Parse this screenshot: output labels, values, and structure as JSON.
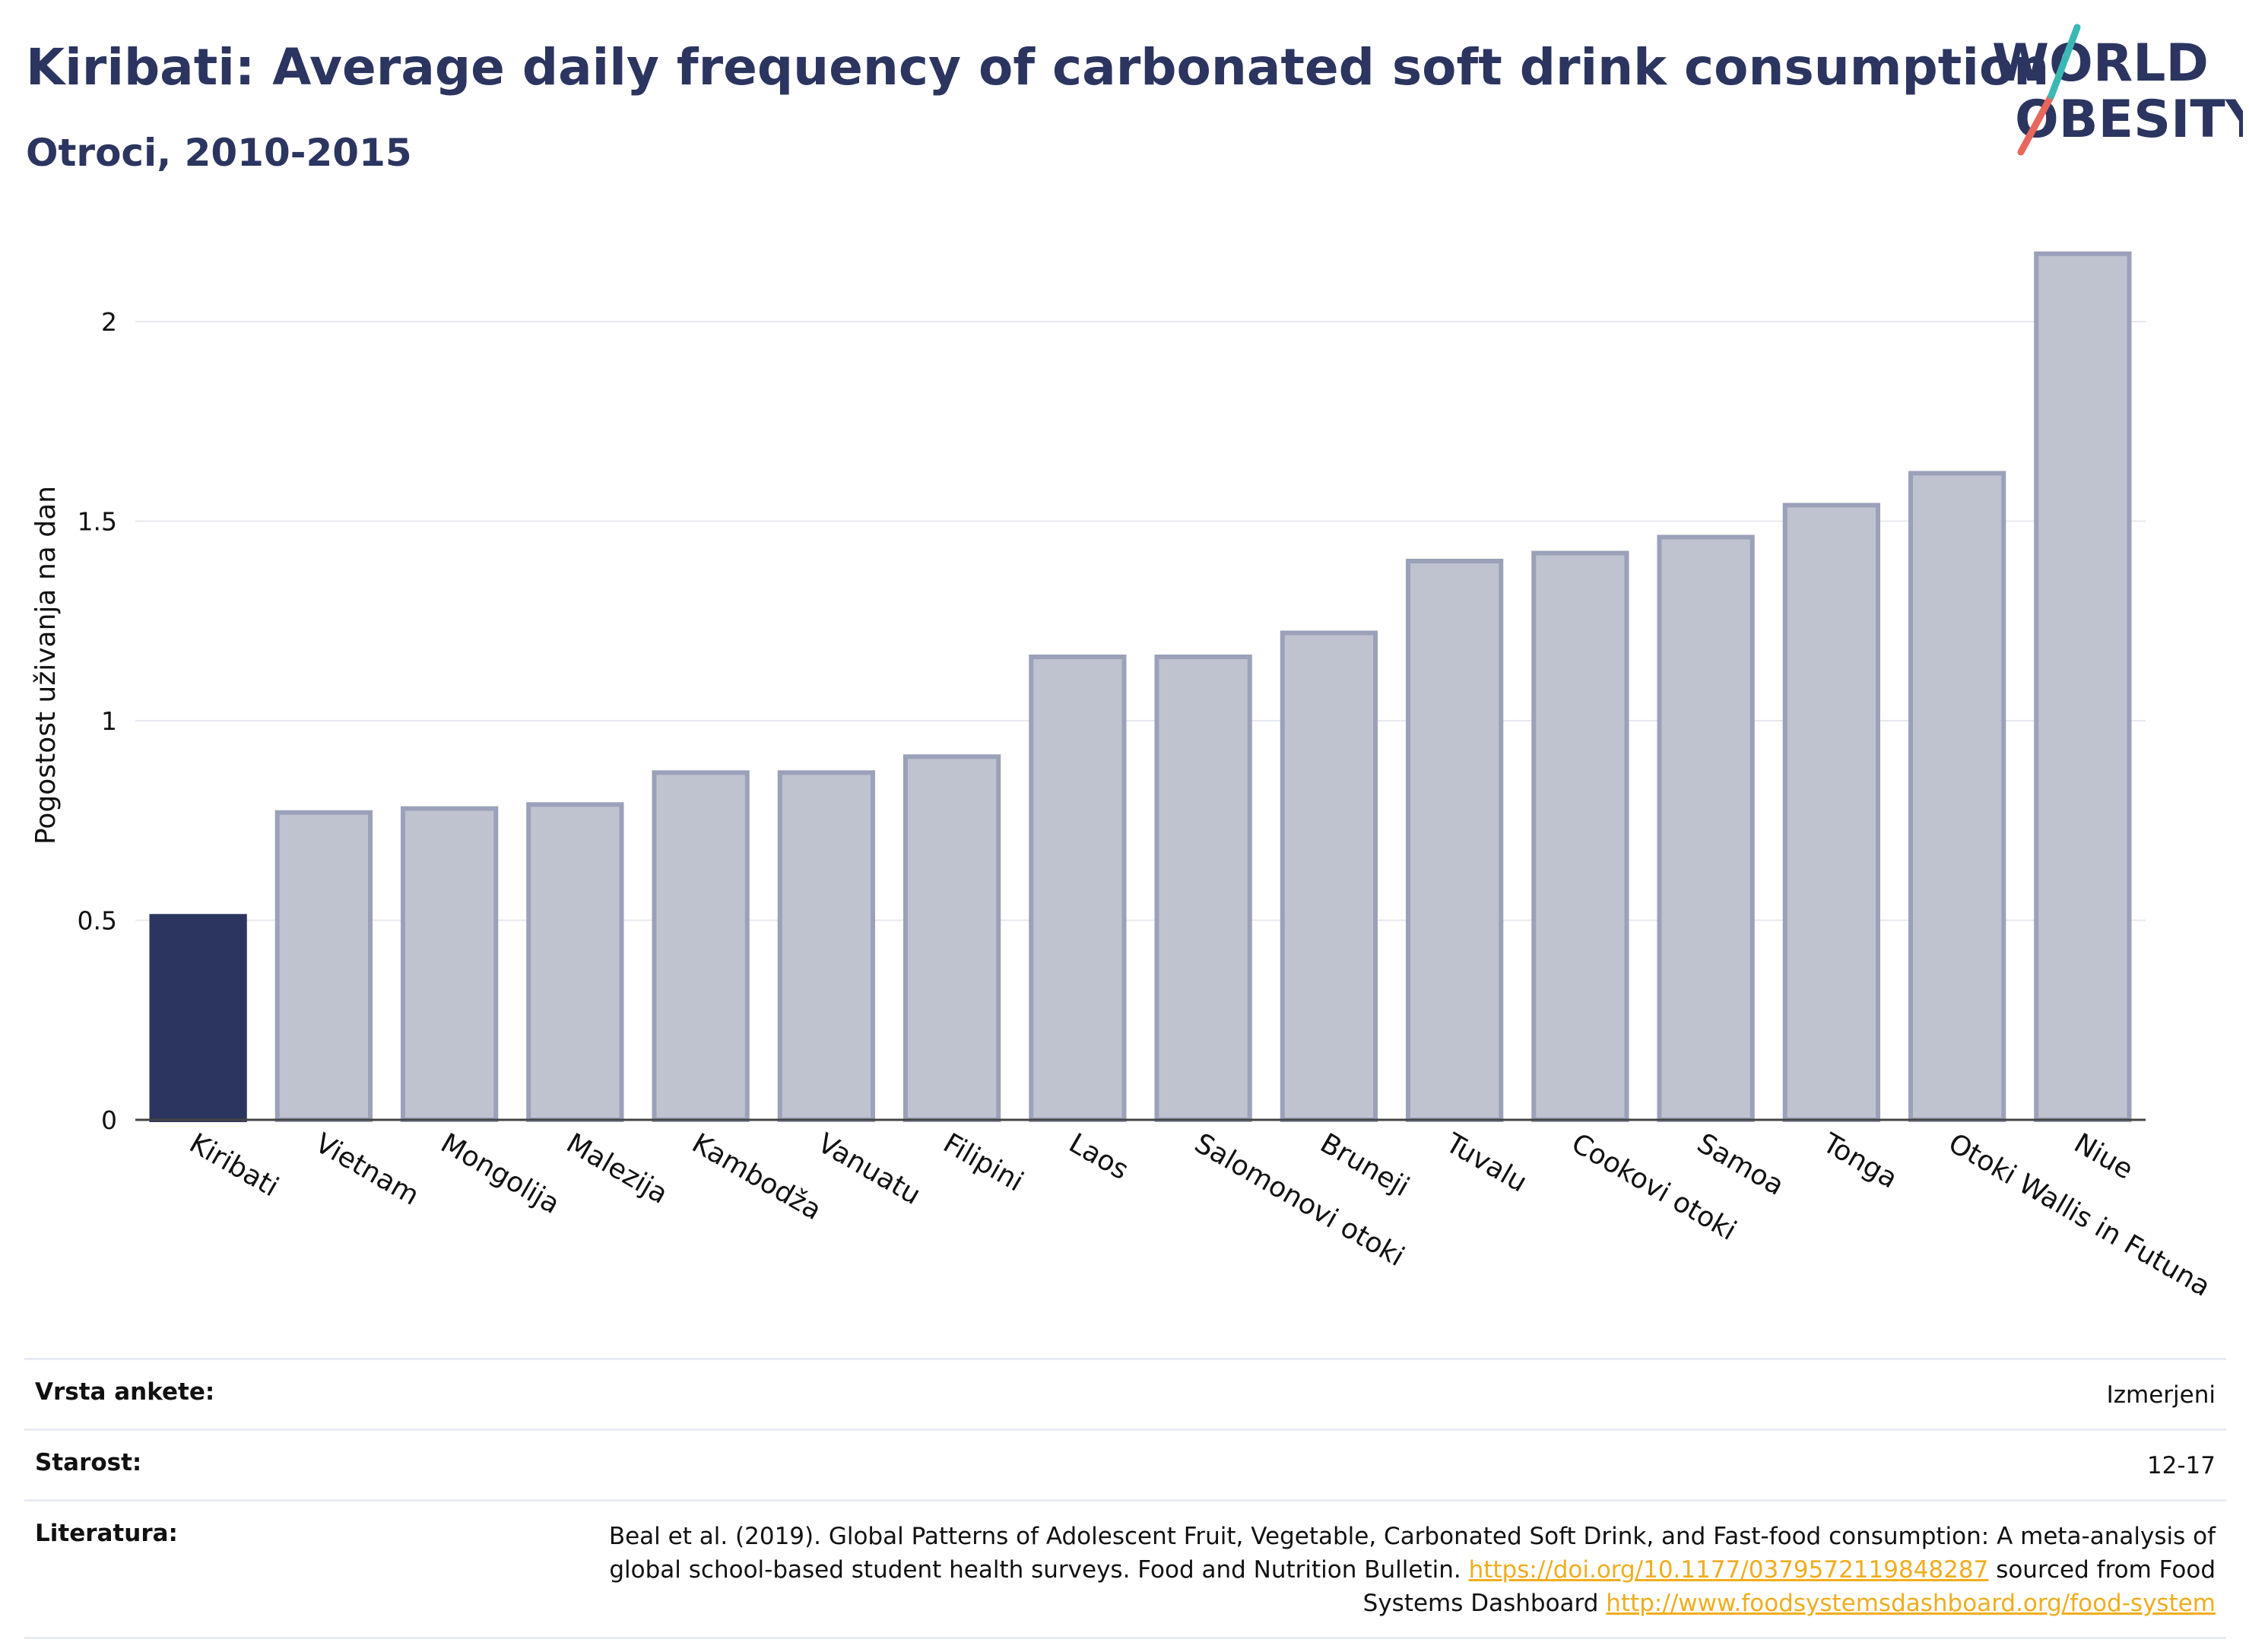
{
  "header": {
    "title": "Kiribati: Average daily frequency of carbonated soft drink consumption",
    "subtitle": "Otroci, 2010-2015"
  },
  "logo": {
    "line1": "WORLD",
    "line2": "OBESITY"
  },
  "chart_data": {
    "type": "bar",
    "categories": [
      "Kiribati",
      "Vietnam",
      "Mongolija",
      "Malezija",
      "Kambodža",
      "Vanuatu",
      "Filipini",
      "Laos",
      "Salomonovi otoki",
      "Bruneji",
      "Tuvalu",
      "Cookovi otoki",
      "Samoa",
      "Tonga",
      "Otoki Wallis in Futuna",
      "Niue"
    ],
    "values": [
      0.51,
      0.77,
      0.78,
      0.79,
      0.87,
      0.87,
      0.91,
      1.16,
      1.16,
      1.22,
      1.4,
      1.42,
      1.46,
      1.54,
      1.62,
      2.17
    ],
    "highlight": "Kiribati",
    "ylabel": "Pogostost uživanja na dan",
    "ylim": [
      0,
      2.2
    ],
    "yticks": [
      0,
      0.5,
      1,
      1.5,
      2
    ],
    "ytick_labels": [
      "0",
      "0.5",
      "1",
      "1.5",
      "2"
    ],
    "grid": true,
    "colors": {
      "highlight": "#2b3560",
      "others": "#bfc3d0",
      "others_border": "#9ba1b9"
    }
  },
  "meta": {
    "survey_label": "Vrsta ankete:",
    "survey_value": "Izmerjeni",
    "age_label": "Starost:",
    "age_value": "12-17",
    "ref_label": "Literatura:",
    "ref_text_1": "Beal et al. (2019). Global Patterns of Adolescent Fruit, Vegetable, Carbonated Soft Drink, and Fast-food consumption: A meta-analysis of global school-based student health surveys. Food and Nutrition Bulletin.",
    "ref_link_1": "https://doi.org/10.1177/0379572119848287",
    "ref_text_2": "sourced from Food Systems Dashboard",
    "ref_link_2": "http://www.foodsystemsdashboard.org/food-system"
  }
}
